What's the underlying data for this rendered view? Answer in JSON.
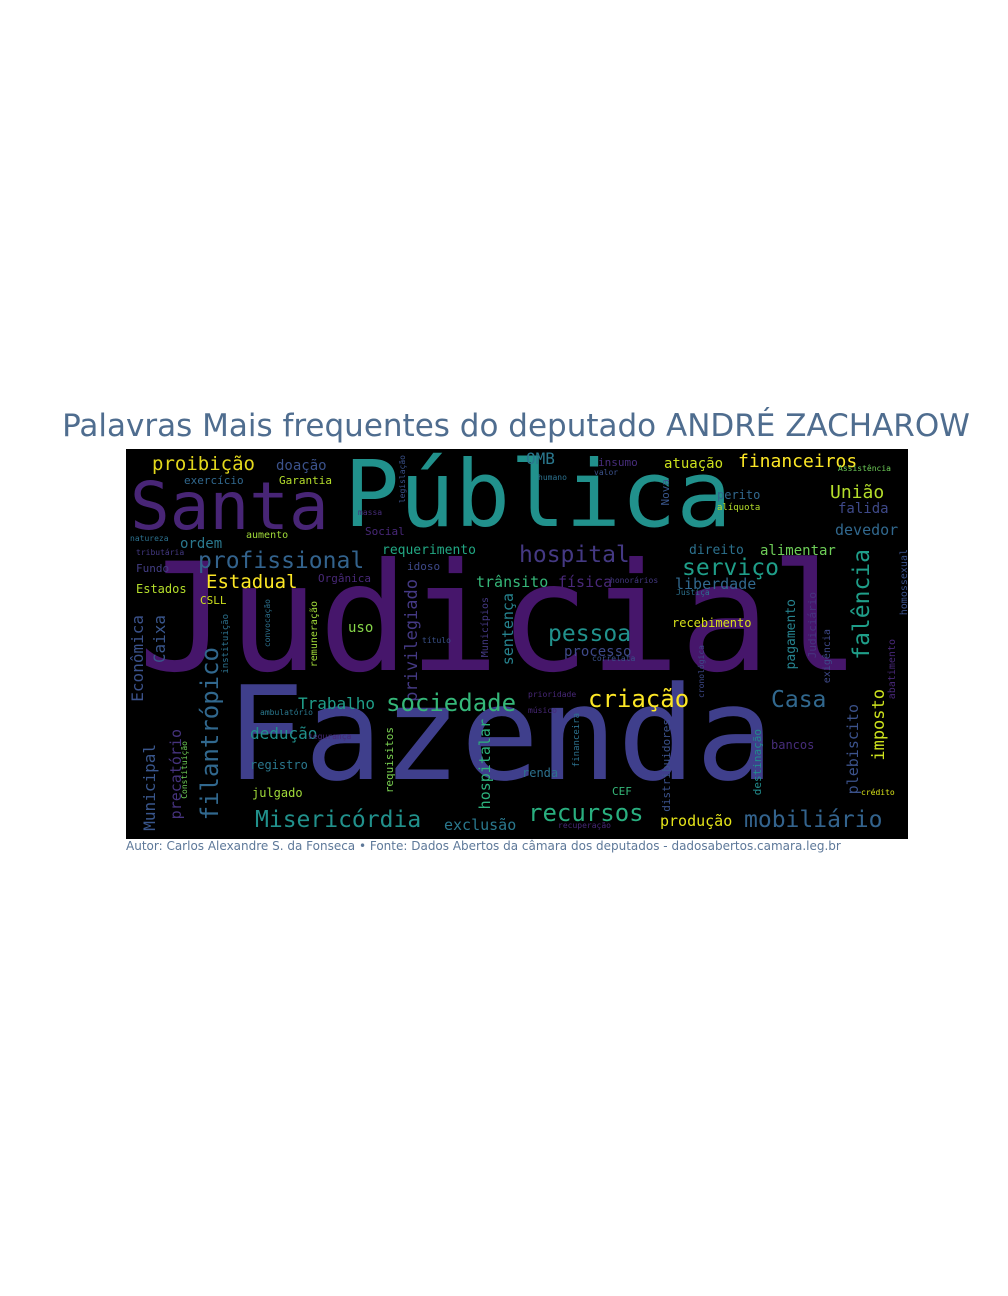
{
  "title": "Palavras Mais frequentes do deputado ANDRÉ ZACHAROW",
  "caption": "Autor: Carlos Alexandre S. da Fonseca • Fonte: Dados Abertos da câmara dos deputados - dadosabertos.camara.leg.br",
  "colors": {
    "background": "#000000",
    "title": "#4f6d8f"
  },
  "words": [
    {
      "text": "Judicial",
      "color": "#46166b"
    },
    {
      "text": "Pública",
      "color": "#21918c"
    },
    {
      "text": "Fazenda",
      "color": "#3f3f8c"
    },
    {
      "text": "Santa",
      "color": "#482576"
    },
    {
      "text": "profissional",
      "color": "#33638d"
    },
    {
      "text": "proibição",
      "color": "#e3d81c"
    },
    {
      "text": "doação",
      "color": "#3b528b"
    },
    {
      "text": "exercício",
      "color": "#31688e"
    },
    {
      "text": "Garantia",
      "color": "#b5de2b"
    },
    {
      "text": "OMB",
      "color": "#2a788e"
    },
    {
      "text": "insumo",
      "color": "#472d7b"
    },
    {
      "text": "atuação",
      "color": "#cde11d"
    },
    {
      "text": "financeiros",
      "color": "#fde725"
    },
    {
      "text": "União",
      "color": "#b5de2b"
    },
    {
      "text": "falida",
      "color": "#3e4989"
    },
    {
      "text": "devedor",
      "color": "#31688e"
    },
    {
      "text": "perito",
      "color": "#31688e"
    },
    {
      "text": "alíquota",
      "color": "#b5de2b"
    },
    {
      "text": "hospital",
      "color": "#443983"
    },
    {
      "text": "serviço",
      "color": "#1f9e89"
    },
    {
      "text": "requerimento",
      "color": "#22a884"
    },
    {
      "text": "direito",
      "color": "#2c718e"
    },
    {
      "text": "alimentar",
      "color": "#6ece58"
    },
    {
      "text": "ordem",
      "color": "#2a788e"
    },
    {
      "text": "Estadual",
      "color": "#fde725"
    },
    {
      "text": "aumento",
      "color": "#a0da39"
    },
    {
      "text": "Social",
      "color": "#482878"
    },
    {
      "text": "natureza",
      "color": "#2c718e"
    },
    {
      "text": "tributária",
      "color": "#443983"
    },
    {
      "text": "Fundo",
      "color": "#433e85"
    },
    {
      "text": "Estados",
      "color": "#b5de2b"
    },
    {
      "text": "CSLL",
      "color": "#cde11d"
    },
    {
      "text": "Orgânica",
      "color": "#482878"
    },
    {
      "text": "idoso",
      "color": "#3e4989"
    },
    {
      "text": "trânsito",
      "color": "#35b779"
    },
    {
      "text": "física",
      "color": "#482878"
    },
    {
      "text": "liberdade",
      "color": "#31688e"
    },
    {
      "text": "falência",
      "color": "#1f9e89"
    },
    {
      "text": "pessoa",
      "color": "#21918c"
    },
    {
      "text": "processo",
      "color": "#3e4989"
    },
    {
      "text": "recebimento",
      "color": "#d8e219"
    },
    {
      "text": "pagamento",
      "color": "#26828e"
    },
    {
      "text": "Judiciário",
      "color": "#46337e"
    },
    {
      "text": "exigência",
      "color": "#3e4989"
    },
    {
      "text": "abatimento",
      "color": "#482878"
    },
    {
      "text": "homossexual",
      "color": "#3b528b"
    },
    {
      "text": "Econômica",
      "color": "#3b528b"
    },
    {
      "text": "Caixa",
      "color": "#39568c"
    },
    {
      "text": "uso",
      "color": "#86d549"
    },
    {
      "text": "filantrópico",
      "color": "#31688e"
    },
    {
      "text": "privilegiado",
      "color": "#443983"
    },
    {
      "text": "sentença",
      "color": "#26828e"
    },
    {
      "text": "criação",
      "color": "#fde725"
    },
    {
      "text": "Casa",
      "color": "#31688e"
    },
    {
      "text": "imposto",
      "color": "#cde11d"
    },
    {
      "text": "plebiscito",
      "color": "#3b528b"
    },
    {
      "text": "Trabalho",
      "color": "#1f9e89"
    },
    {
      "text": "sociedade",
      "color": "#35b779"
    },
    {
      "text": "remuneração",
      "color": "#a0da39"
    },
    {
      "text": "dedução",
      "color": "#21918c"
    },
    {
      "text": "ambulatório",
      "color": "#2a788e"
    },
    {
      "text": "segurança",
      "color": "#482878"
    },
    {
      "text": "Municipal",
      "color": "#39568c"
    },
    {
      "text": "precatório",
      "color": "#46337e"
    },
    {
      "text": "registro",
      "color": "#2a788e"
    },
    {
      "text": "julgado",
      "color": "#a0da39"
    },
    {
      "text": "requisitos",
      "color": "#7ad151"
    },
    {
      "text": "hospitalar",
      "color": "#2db27d"
    },
    {
      "text": "renda",
      "color": "#2c718e"
    },
    {
      "text": "CEF",
      "color": "#35b779"
    },
    {
      "text": "distribuidores",
      "color": "#3b528b"
    },
    {
      "text": "destinação",
      "color": "#228c8d"
    },
    {
      "text": "bancos",
      "color": "#472d7b"
    },
    {
      "text": "crédito",
      "color": "#d8e219"
    },
    {
      "text": "Misericórdia",
      "color": "#21918c"
    },
    {
      "text": "exclusão",
      "color": "#2a788e"
    },
    {
      "text": "recursos",
      "color": "#29af7f"
    },
    {
      "text": "produção",
      "color": "#e5e419"
    },
    {
      "text": "mobiliário",
      "color": "#33638d"
    },
    {
      "text": "recuperação",
      "color": "#482878"
    },
    {
      "text": "financeira",
      "color": "#2c718e"
    },
    {
      "text": "prioridade",
      "color": "#482878"
    },
    {
      "text": "músico",
      "color": "#482878"
    },
    {
      "text": "Nova",
      "color": "#39568c"
    },
    {
      "text": "humano",
      "color": "#2c718e"
    },
    {
      "text": "valor",
      "color": "#3b528b"
    },
    {
      "text": "título",
      "color": "#3b528b"
    },
    {
      "text": "honorários",
      "color": "#443983"
    },
    {
      "text": "Justiça",
      "color": "#2c718e"
    },
    {
      "text": "correlata",
      "color": "#3b528b"
    },
    {
      "text": "Municípios",
      "color": "#443983"
    },
    {
      "text": "legislação",
      "color": "#3b528b"
    },
    {
      "text": "convocação",
      "color": "#2c718e"
    },
    {
      "text": "instituição",
      "color": "#2c718e"
    },
    {
      "text": "Constituição",
      "color": "#6ece58"
    },
    {
      "text": "cronológica",
      "color": "#3e4989"
    },
    {
      "text": "Assistência",
      "color": "#6ece58"
    },
    {
      "text": "massa",
      "color": "#472d7b"
    }
  ]
}
